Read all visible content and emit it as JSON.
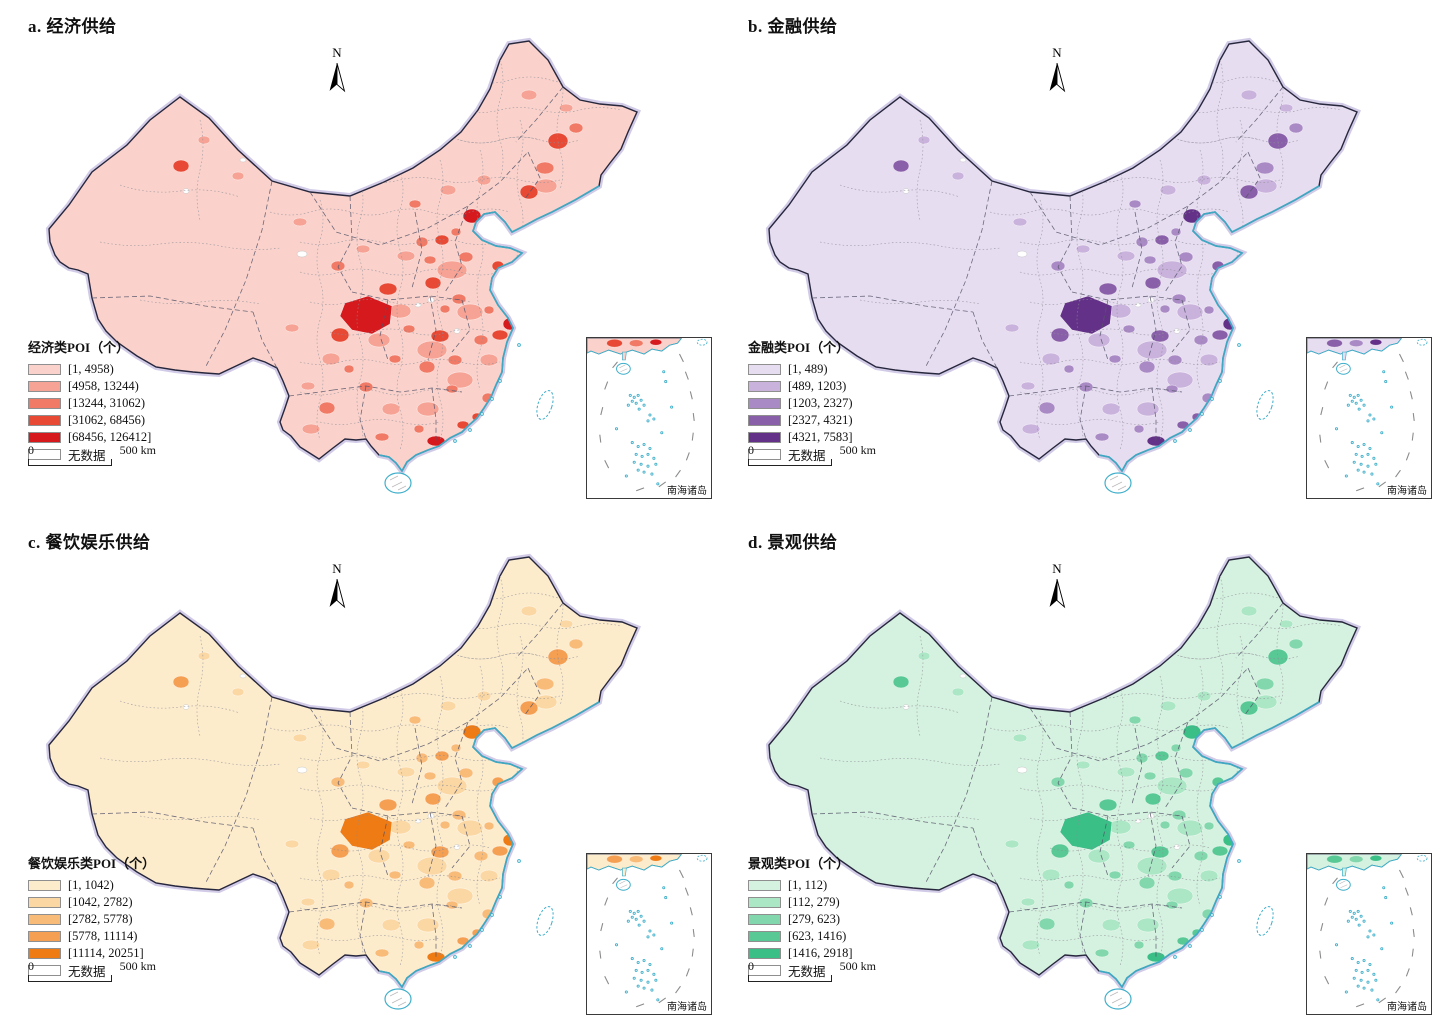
{
  "figure": {
    "type": "choropleth-map-figure",
    "panel_count": 4,
    "coast_color": "#3fafca",
    "outline_color": "#26263c"
  },
  "panels": [
    {
      "id": "a",
      "title": "a. 经济供给",
      "legend_title": "经济类POI（个）",
      "classes": [
        {
          "range": "[1, 4958)",
          "color": "#fad2cb"
        },
        {
          "range": "[4958, 13244)",
          "color": "#f6a395"
        },
        {
          "range": "[13244, 31062)",
          "color": "#f07a66"
        },
        {
          "range": "[31062, 68456)",
          "color": "#e74934"
        },
        {
          "range": "[68456, 126412]",
          "color": "#d5191c"
        }
      ],
      "no_data_label": "无数据",
      "scale": {
        "start": "0",
        "end": "500 km"
      },
      "north_label": "N",
      "inset_caption": "南海诸岛",
      "coast_color": "#3fafca"
    },
    {
      "id": "b",
      "title": "b. 金融供给",
      "legend_title": "金融类POI（个）",
      "classes": [
        {
          "range": "[1, 489)",
          "color": "#e7ddf1"
        },
        {
          "range": "[489, 1203)",
          "color": "#c9b2dc"
        },
        {
          "range": "[1203, 2327)",
          "color": "#aa8ac5"
        },
        {
          "range": "[2327, 4321)",
          "color": "#8a5fa9"
        },
        {
          "range": "[4321, 7583]",
          "color": "#643188"
        }
      ],
      "no_data_label": "无数据",
      "scale": {
        "start": "0",
        "end": "500 km"
      },
      "north_label": "N",
      "inset_caption": "南海诸岛",
      "coast_color": "#3fafca"
    },
    {
      "id": "c",
      "title": "c. 餐饮娱乐供给",
      "legend_title": "餐饮娱乐类POI（个）",
      "classes": [
        {
          "range": "[1, 1042)",
          "color": "#fdeccc"
        },
        {
          "range": "[1042, 2782)",
          "color": "#fbd8a3"
        },
        {
          "range": "[2782, 5778)",
          "color": "#f9bb78"
        },
        {
          "range": "[5778, 11114)",
          "color": "#f59f52"
        },
        {
          "range": "[11114, 20251]",
          "color": "#ee7b14"
        }
      ],
      "no_data_label": "无数据",
      "scale": {
        "start": "0",
        "end": "500 km"
      },
      "north_label": "N",
      "inset_caption": "南海诸岛",
      "coast_color": "#3fafca"
    },
    {
      "id": "d",
      "title": "d. 景观供给",
      "legend_title": "景观类POI（个）",
      "classes": [
        {
          "range": "[1, 112)",
          "color": "#d5f1df"
        },
        {
          "range": "[112, 279)",
          "color": "#abe6c5"
        },
        {
          "range": "[279, 623)",
          "color": "#82d8ac"
        },
        {
          "range": "[623, 1416)",
          "color": "#58c995"
        },
        {
          "range": "[1416, 2918]",
          "color": "#3abf86"
        }
      ],
      "no_data_label": "无数据",
      "scale": {
        "start": "0",
        "end": "500 km"
      },
      "north_label": "N",
      "inset_caption": "南海诸岛",
      "coast_color": "#3fafca"
    }
  ]
}
